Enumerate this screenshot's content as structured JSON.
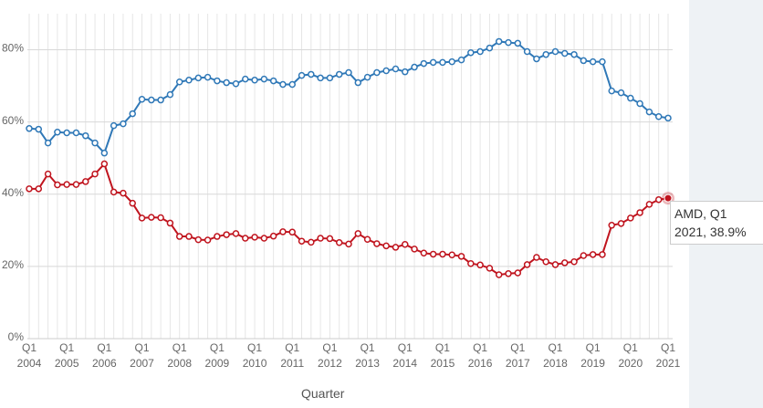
{
  "chart_data": {
    "type": "line",
    "categories": [
      "Q1\n2004",
      null,
      null,
      null,
      "Q1\n2005",
      null,
      null,
      null,
      "Q1\n2006",
      null,
      null,
      null,
      "Q1\n2007",
      null,
      null,
      null,
      "Q1\n2008",
      null,
      null,
      null,
      "Q1\n2009",
      null,
      null,
      null,
      "Q1\n2010",
      null,
      null,
      null,
      "Q1\n2011",
      null,
      null,
      null,
      "Q1\n2012",
      null,
      null,
      null,
      "Q1\n2013",
      null,
      null,
      null,
      "Q1\n2014",
      null,
      null,
      null,
      "Q1\n2015",
      null,
      null,
      null,
      "Q1\n2016",
      null,
      null,
      null,
      "Q1\n2017",
      null,
      null,
      null,
      "Q1\n2018",
      null,
      null,
      null,
      "Q1\n2019",
      null,
      null,
      null,
      "Q1\n2020",
      null,
      null,
      null,
      "Q1\n2021"
    ],
    "series": [
      {
        "color": "#2f78b7",
        "values": [
          58.2,
          58,
          54.2,
          57.2,
          57,
          57,
          56.2,
          54.2,
          51.4,
          59,
          59.5,
          62.3,
          66.3,
          66.1,
          66.1,
          67.6,
          71.1,
          71.6,
          72.2,
          72.4,
          71.4,
          70.9,
          70.6,
          71.9,
          71.6,
          71.9,
          71.4,
          70.4,
          70.4,
          72.9,
          73.2,
          72.2,
          72.2,
          73.2,
          73.7,
          70.9,
          72.4,
          73.7,
          74.2,
          74.7,
          73.9,
          75.2,
          76.2,
          76.5,
          76.5,
          76.7,
          77.2,
          79.2,
          79.5,
          80.5,
          82.3,
          82,
          81.8,
          79.5,
          77.5,
          78.7,
          79.5,
          79,
          78.7,
          77,
          76.7,
          76.7,
          68.6,
          68.1,
          66.6,
          65.1,
          62.8,
          61.5,
          61.1
        ]
      },
      {
        "name": "AMD",
        "color": "#c0141e",
        "values": [
          41.5,
          41.5,
          45.6,
          42.6,
          42.7,
          42.7,
          43.5,
          45.6,
          48.4,
          40.6,
          40.3,
          37.5,
          33.4,
          33.6,
          33.5,
          32,
          28.3,
          28.3,
          27.4,
          27.3,
          28.3,
          28.8,
          29.1,
          27.8,
          28.1,
          27.8,
          28.4,
          29.6,
          29.5,
          27,
          26.7,
          27.8,
          27.7,
          26.6,
          26.2,
          29.1,
          27.5,
          26.3,
          25.7,
          25.3,
          26.1,
          24.8,
          23.7,
          23.4,
          23.4,
          23.2,
          22.8,
          20.8,
          20.4,
          19.5,
          17.7,
          18,
          18.2,
          20.5,
          22.5,
          21.3,
          20.5,
          21,
          21.3,
          23,
          23.3,
          23.3,
          31.4,
          31.9,
          33.4,
          34.9,
          37.2,
          38.5,
          38.9
        ]
      }
    ],
    "ylim": [
      0,
      90
    ],
    "yticks": [
      {
        "value": 0,
        "label": "0%"
      },
      {
        "value": 20,
        "label": "20%"
      },
      {
        "value": 40,
        "label": "40%"
      },
      {
        "value": 60,
        "label": "60%"
      },
      {
        "value": 80,
        "label": "80%"
      }
    ],
    "grid": true,
    "x_label": "Quarter",
    "tooltip": "AMD, Q1 2021, 38.9%"
  }
}
